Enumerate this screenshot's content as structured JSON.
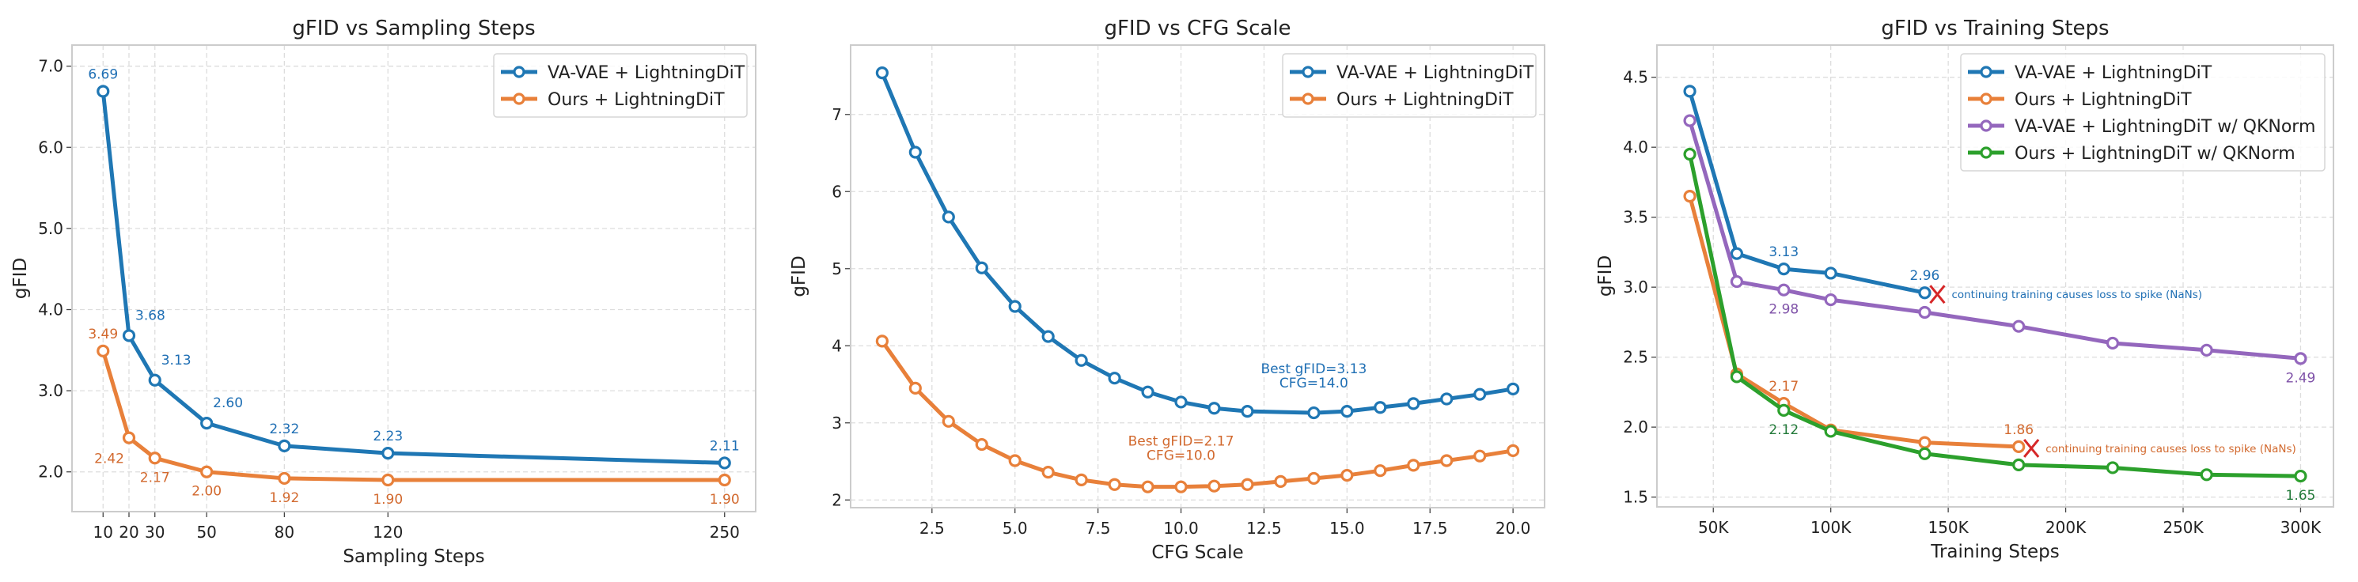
{
  "chart_data": [
    {
      "type": "line",
      "title": "gFID vs Sampling Steps",
      "xlabel": "Sampling Steps",
      "ylabel": "gFID",
      "xlim": [
        -2,
        262
      ],
      "ylim": [
        1.51,
        7.26
      ],
      "xticks": [
        10,
        20,
        30,
        50,
        80,
        120,
        250
      ],
      "xtick_labels": [
        "10",
        "20",
        "30",
        "50",
        "80",
        "120",
        "250"
      ],
      "yticks": [
        2.0,
        3.0,
        4.0,
        5.0,
        6.0,
        7.0
      ],
      "ytick_labels": [
        "2.0",
        "3.0",
        "4.0",
        "5.0",
        "6.0",
        "7.0"
      ],
      "grid": true,
      "legend": "top-right",
      "series": [
        {
          "name": "VA-VAE + LightningDiT",
          "color": "#1f77b4",
          "label_color": "#1f6fb4",
          "x": [
            10,
            20,
            30,
            50,
            80,
            120,
            250
          ],
          "values": [
            6.69,
            3.68,
            3.13,
            2.6,
            2.32,
            2.23,
            2.11
          ],
          "data_labels": [
            "6.69",
            "3.68",
            "3.13",
            "2.60",
            "2.32",
            "2.23",
            "2.11"
          ],
          "label_pos": [
            "above",
            "above-right",
            "above-right",
            "above-right",
            "above",
            "above",
            "above"
          ]
        },
        {
          "name": "Ours + LightningDiT",
          "color": "#e8803a",
          "label_color": "#d2692e",
          "x": [
            10,
            20,
            30,
            50,
            80,
            120,
            250
          ],
          "values": [
            3.49,
            2.42,
            2.17,
            2.0,
            1.92,
            1.9,
            1.9
          ],
          "data_labels": [
            "3.49",
            "2.42",
            "2.17",
            "2.00",
            "1.92",
            "1.90",
            "1.90"
          ],
          "label_pos": [
            "above",
            "below-left",
            "below",
            "below",
            "below",
            "below",
            "below"
          ]
        }
      ],
      "annotations": []
    },
    {
      "type": "line",
      "title": "gFID vs CFG Scale",
      "xlabel": "CFG Scale",
      "ylabel": "gFID",
      "xlim": [
        0.05,
        20.95
      ],
      "ylim": [
        1.9,
        7.9
      ],
      "xticks": [
        2.5,
        5.0,
        7.5,
        10.0,
        12.5,
        15.0,
        17.5,
        20.0
      ],
      "xtick_labels": [
        "2.5",
        "5.0",
        "7.5",
        "10.0",
        "12.5",
        "15.0",
        "17.5",
        "20.0"
      ],
      "yticks": [
        2,
        3,
        4,
        5,
        6,
        7
      ],
      "ytick_labels": [
        "2",
        "3",
        "4",
        "5",
        "6",
        "7"
      ],
      "grid": true,
      "legend": "top-right",
      "series": [
        {
          "name": "VA-VAE + LightningDiT",
          "color": "#1f77b4",
          "label_color": "#1f6fb4",
          "x": [
            1,
            2,
            3,
            4,
            5,
            6,
            7,
            8,
            9,
            10,
            11,
            12,
            14,
            15,
            16,
            17,
            18,
            19,
            20
          ],
          "values": [
            7.54,
            6.51,
            5.67,
            5.01,
            4.51,
            4.12,
            3.81,
            3.58,
            3.4,
            3.27,
            3.19,
            3.15,
            3.13,
            3.15,
            3.2,
            3.25,
            3.31,
            3.37,
            3.44
          ]
        },
        {
          "name": "Ours + LightningDiT",
          "color": "#e8803a",
          "label_color": "#d2692e",
          "x": [
            1,
            2,
            3,
            4,
            5,
            6,
            7,
            8,
            9,
            10,
            11,
            12,
            13,
            14,
            15,
            16,
            17,
            18,
            19,
            20
          ],
          "values": [
            4.06,
            3.45,
            3.02,
            2.72,
            2.51,
            2.36,
            2.26,
            2.2,
            2.17,
            2.17,
            2.18,
            2.2,
            2.24,
            2.28,
            2.32,
            2.38,
            2.45,
            2.51,
            2.57,
            2.64
          ]
        }
      ],
      "annotations": [
        {
          "series": 0,
          "lines": [
            "Best gFID=3.13",
            "CFG=14.0"
          ],
          "x": 14.0,
          "y": 3.13
        },
        {
          "series": 1,
          "lines": [
            "Best gFID=2.17",
            "CFG=10.0"
          ],
          "x": 10.0,
          "y": 2.17
        }
      ]
    },
    {
      "type": "line",
      "title": "gFID vs Training Steps",
      "xlabel": "Training Steps",
      "ylabel": "gFID",
      "xlim": [
        26000,
        314000
      ],
      "ylim": [
        1.43,
        4.73
      ],
      "xticks": [
        50000,
        100000,
        150000,
        200000,
        250000,
        300000
      ],
      "xtick_labels": [
        "50K",
        "100K",
        "150K",
        "200K",
        "250K",
        "300K"
      ],
      "yticks": [
        1.5,
        2.0,
        2.5,
        3.0,
        3.5,
        4.0,
        4.5
      ],
      "ytick_labels": [
        "1.5",
        "2.0",
        "2.5",
        "3.0",
        "3.5",
        "4.0",
        "4.5"
      ],
      "grid": true,
      "legend": "top-right",
      "series": [
        {
          "name": "VA-VAE + LightningDiT",
          "color": "#1f77b4",
          "label_color": "#1f6fb4",
          "x": [
            40000,
            60000,
            80000,
            100000,
            140000
          ],
          "values": [
            4.4,
            3.24,
            3.13,
            3.1,
            2.96
          ],
          "data_labels": [
            null,
            null,
            "3.13",
            null,
            "2.96"
          ],
          "label_pos": [
            null,
            null,
            "above",
            null,
            "above"
          ],
          "diverged": {
            "note": "continuing training causes loss to spike (NaNs)"
          }
        },
        {
          "name": "Ours + LightningDiT",
          "color": "#e8803a",
          "label_color": "#d2692e",
          "x": [
            40000,
            60000,
            80000,
            100000,
            140000,
            180000
          ],
          "values": [
            3.65,
            2.38,
            2.17,
            1.98,
            1.89,
            1.86
          ],
          "data_labels": [
            null,
            null,
            "2.17",
            null,
            null,
            "1.86"
          ],
          "label_pos": [
            null,
            null,
            "above",
            null,
            null,
            "above"
          ],
          "diverged": {
            "note": "continuing training causes loss to spike (NaNs)"
          }
        },
        {
          "name": "VA-VAE + LightningDiT w/ QKNorm",
          "color": "#9467bd",
          "label_color": "#7f52a8",
          "x": [
            40000,
            60000,
            80000,
            100000,
            140000,
            180000,
            220000,
            260000,
            300000
          ],
          "values": [
            4.19,
            3.04,
            2.98,
            2.91,
            2.82,
            2.72,
            2.6,
            2.55,
            2.49
          ],
          "data_labels": [
            null,
            null,
            "2.98",
            null,
            null,
            null,
            null,
            null,
            "2.49"
          ],
          "label_pos": [
            null,
            null,
            "below",
            null,
            null,
            null,
            null,
            null,
            "below"
          ]
        },
        {
          "name": "Ours + LightningDiT w/ QKNorm",
          "color": "#2ca02c",
          "label_color": "#237a3a",
          "x": [
            40000,
            60000,
            80000,
            100000,
            140000,
            180000,
            220000,
            260000,
            300000
          ],
          "values": [
            3.95,
            2.36,
            2.12,
            1.97,
            1.81,
            1.73,
            1.71,
            1.66,
            1.65
          ],
          "data_labels": [
            null,
            null,
            "2.12",
            null,
            null,
            null,
            null,
            null,
            "1.65"
          ],
          "label_pos": [
            null,
            null,
            "below",
            null,
            null,
            null,
            null,
            null,
            "below"
          ]
        }
      ],
      "annotations": [],
      "diverge_marker_color": "#d62728"
    }
  ]
}
